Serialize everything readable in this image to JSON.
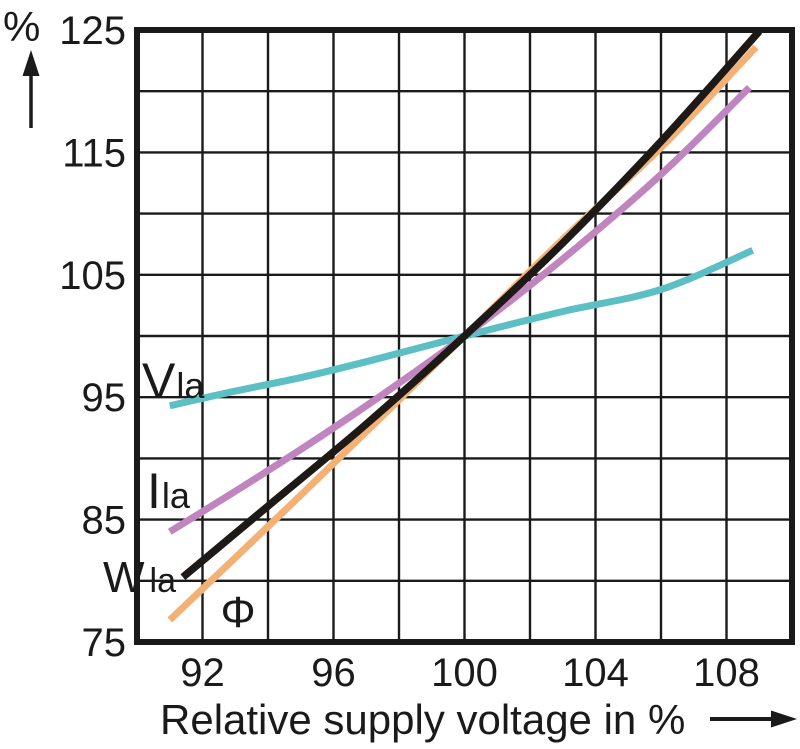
{
  "figure": {
    "background": "#ffffff",
    "icons": {
      "y_axis_arrow": "up-arrow",
      "x_axis_arrow": "right-arrow"
    },
    "colors": {
      "axis": "#1a1a1a",
      "grid": "#1a1a1a",
      "text": "#1a1a1a"
    }
  },
  "chart_data": {
    "type": "line",
    "title": "",
    "xlabel": "Relative supply voltage in %",
    "ylabel": "%",
    "xlim": [
      90,
      110
    ],
    "ylim": [
      75,
      125
    ],
    "x_ticks": [
      92,
      96,
      100,
      104,
      108
    ],
    "y_ticks": [
      75,
      85,
      95,
      105,
      115,
      125
    ],
    "grid": {
      "visible": true,
      "x_step": 2,
      "y_step": 5
    },
    "legend_position": "on-curve-labels",
    "series": [
      {
        "label": "V",
        "subscript": "la",
        "color": "#5cbfc4",
        "points": [
          [
            91,
            94.3
          ],
          [
            93,
            95.5
          ],
          [
            95,
            96.6
          ],
          [
            97,
            97.9
          ],
          [
            100,
            100
          ],
          [
            103,
            102
          ],
          [
            106,
            103.8
          ],
          [
            108.8,
            107
          ]
        ]
      },
      {
        "label": "I",
        "subscript": "la",
        "color": "#c085bf",
        "points": [
          [
            91,
            84
          ],
          [
            94,
            89
          ],
          [
            97,
            94.3
          ],
          [
            100,
            100
          ],
          [
            103,
            106.3
          ],
          [
            106,
            113.2
          ],
          [
            108.7,
            120.3
          ]
        ]
      },
      {
        "label": "Φ",
        "subscript": "",
        "color": "#f4b176",
        "points": [
          [
            91,
            76.8
          ],
          [
            95,
            87
          ],
          [
            100,
            100
          ],
          [
            103,
            107.9
          ],
          [
            106,
            115.4
          ],
          [
            108.9,
            123.6
          ]
        ]
      },
      {
        "label": "W",
        "subscript": "la",
        "color": "#1d1916",
        "points": [
          [
            91.4,
            80.3
          ],
          [
            94,
            86.1
          ],
          [
            97,
            92.8
          ],
          [
            100,
            100
          ],
          [
            103,
            107.6
          ],
          [
            106,
            115.9
          ],
          [
            109,
            124.9
          ]
        ]
      }
    ]
  }
}
